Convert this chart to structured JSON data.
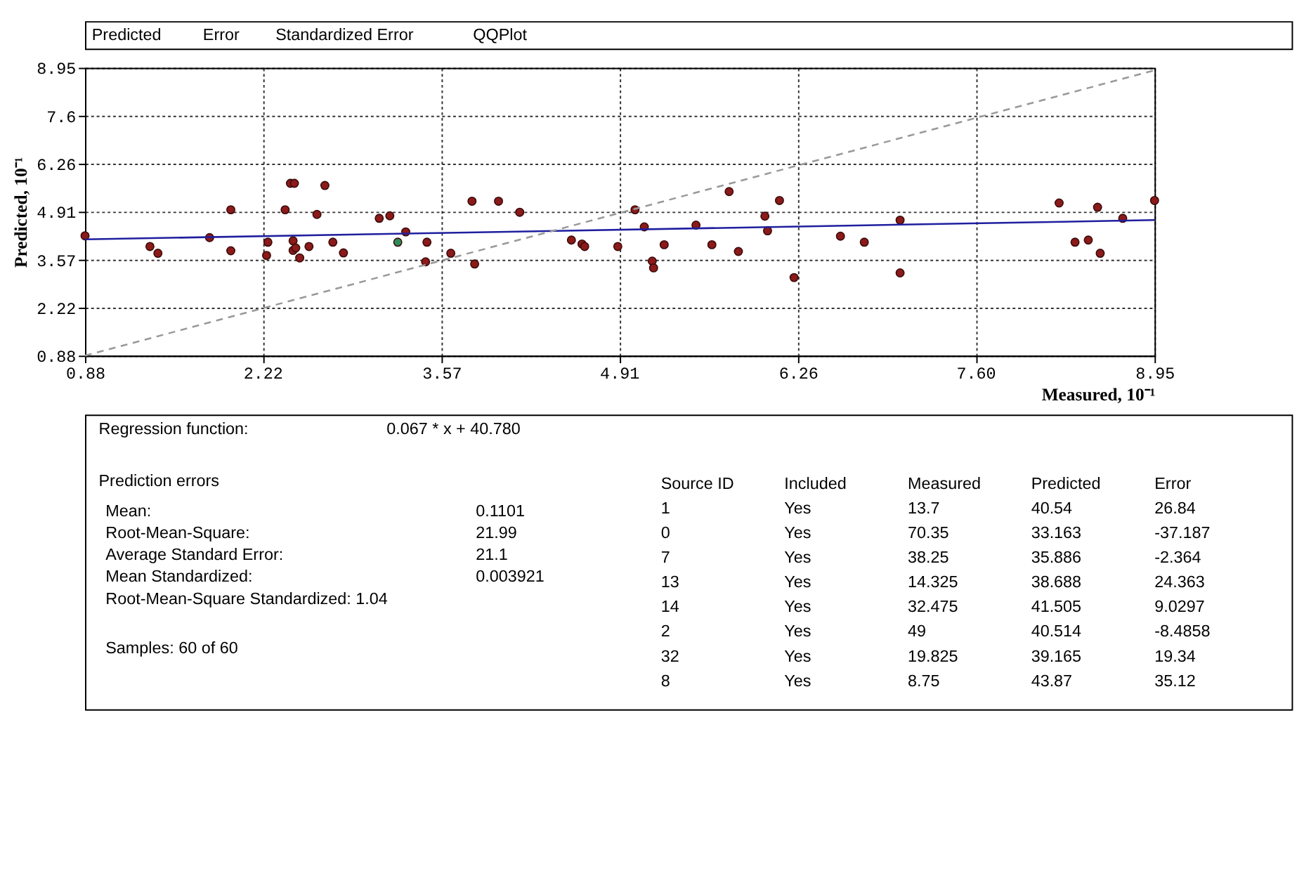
{
  "chart_data": {
    "type": "scatter",
    "xlabel": "Measured, 10⁻¹",
    "ylabel": "Predicted, 10⁻¹",
    "xlim": [
      0.88,
      8.95
    ],
    "ylim": [
      0.88,
      8.95
    ],
    "xticks": [
      0.88,
      2.22,
      3.57,
      4.91,
      6.26,
      {
        "value": 7.6,
        "label": "7.60"
      },
      8.95
    ],
    "yticks": [
      0.88,
      2.22,
      3.57,
      4.91,
      6.26,
      7.6,
      8.95
    ],
    "grid": true,
    "series": [
      {
        "color": "#8b1a1a",
        "marker": "circle",
        "x": [
          0.88,
          1.37,
          1.43,
          1.82,
          1.98,
          1.98,
          2.26,
          2.25,
          2.43,
          2.69,
          2.39,
          2.63,
          2.45,
          2.45,
          2.5,
          2.57,
          2.75,
          2.83,
          3.1,
          3.18,
          3.24,
          3.3,
          3.46,
          3.45,
          3.64,
          3.8,
          3.82,
          4.0,
          4.16,
          4.55,
          4.63,
          4.65,
          4.9,
          5.03,
          5.1,
          5.16,
          5.17,
          5.25,
          5.49,
          5.61,
          5.74,
          5.81,
          6.01,
          6.03,
          6.12,
          6.23,
          6.58,
          6.76,
          7.03,
          7.03,
          8.23,
          8.35,
          8.45,
          8.52,
          8.54,
          8.71,
          8.95,
          2.46,
          2.47
        ],
        "values": [
          4.24,
          3.94,
          3.75,
          4.19,
          4.97,
          3.82,
          4.06,
          3.69,
          5.71,
          5.65,
          4.97,
          4.84,
          4.1,
          3.83,
          3.62,
          3.94,
          4.06,
          3.76,
          4.73,
          4.8,
          4.06,
          4.35,
          4.06,
          3.51,
          3.75,
          5.21,
          3.45,
          5.21,
          4.9,
          4.12,
          4.01,
          3.94,
          3.94,
          4.97,
          4.49,
          3.53,
          3.34,
          3.99,
          4.54,
          3.99,
          5.48,
          3.8,
          4.79,
          4.38,
          5.23,
          3.07,
          4.23,
          4.06,
          4.68,
          3.2,
          5.16,
          4.06,
          4.12,
          5.04,
          3.75,
          4.73,
          5.23,
          5.71,
          3.9
        ],
        "colors": [
          "#8b1a1a",
          "#8b1a1a",
          "#8b1a1a",
          "#8b1a1a",
          "#8b1a1a",
          "#8b1a1a",
          "#8b1a1a",
          "#8b1a1a",
          "#8b1a1a",
          "#8b1a1a",
          "#8b1a1a",
          "#8b1a1a",
          "#8b1a1a",
          "#8b1a1a",
          "#8b1a1a",
          "#8b1a1a",
          "#8b1a1a",
          "#8b1a1a",
          "#8b1a1a",
          "#8b1a1a",
          "#2e8b57",
          "#8b1a1a",
          "#8b1a1a",
          "#8b1a1a",
          "#8b1a1a",
          "#8b1a1a",
          "#8b1a1a",
          "#8b1a1a",
          "#8b1a1a",
          "#8b1a1a",
          "#8b1a1a",
          "#8b1a1a",
          "#8b1a1a",
          "#8b1a1a",
          "#8b1a1a",
          "#8b1a1a",
          "#8b1a1a",
          "#8b1a1a",
          "#8b1a1a",
          "#8b1a1a",
          "#8b1a1a",
          "#8b1a1a",
          "#8b1a1a",
          "#8b1a1a",
          "#8b1a1a",
          "#8b1a1a",
          "#8b1a1a",
          "#8b1a1a",
          "#8b1a1a",
          "#8b1a1a",
          "#8b1a1a",
          "#8b1a1a",
          "#8b1a1a",
          "#8b1a1a",
          "#8b1a1a",
          "#8b1a1a",
          "#8b1a1a",
          "#8b1a1a",
          "#8b1a1a"
        ]
      },
      {
        "type": "line",
        "color": "#1f1f9f",
        "line_style": "solid",
        "x": [
          0.88,
          8.95
        ],
        "values": [
          4.14,
          4.68
        ]
      },
      {
        "type": "line",
        "color": "#999999",
        "line_style": "dashed",
        "x": [
          0.88,
          8.95
        ],
        "values": [
          0.88,
          8.88
        ]
      }
    ],
    "annotations": [
      "Predicted",
      "Error",
      "Standardized Error",
      "QQPlot",
      "Regression function:",
      "0.067 * x + 40.780",
      "Prediction errors",
      "Mean:",
      "Root-Mean-Square:",
      "Average Standard Error:",
      "Mean Standardized:",
      "Root-Mean-Square Standardized: 1.04",
      "0.1101",
      "21.99",
      "21.1",
      "0.003921",
      "Samples: 60 of 60",
      "Source ID",
      "Included",
      "Measured",
      "Predicted",
      "Error",
      "1",
      "Yes",
      "13.7",
      "40.54",
      "26.84",
      "0",
      "Yes",
      "70.35",
      "33.163",
      "-37.187",
      "7",
      "Yes",
      "38.25",
      "35.886",
      "-2.364",
      "13",
      "Yes",
      "14.325",
      "38.688",
      "24.363",
      "14",
      "Yes",
      "32.475",
      "41.505",
      "9.0297",
      "2",
      "Yes",
      "49",
      "40.514",
      "-8.4858",
      "32",
      "Yes",
      "19.825",
      "39.165",
      "19.34",
      "8",
      "Yes",
      "8.75",
      "43.87",
      "35.12"
    ]
  }
}
